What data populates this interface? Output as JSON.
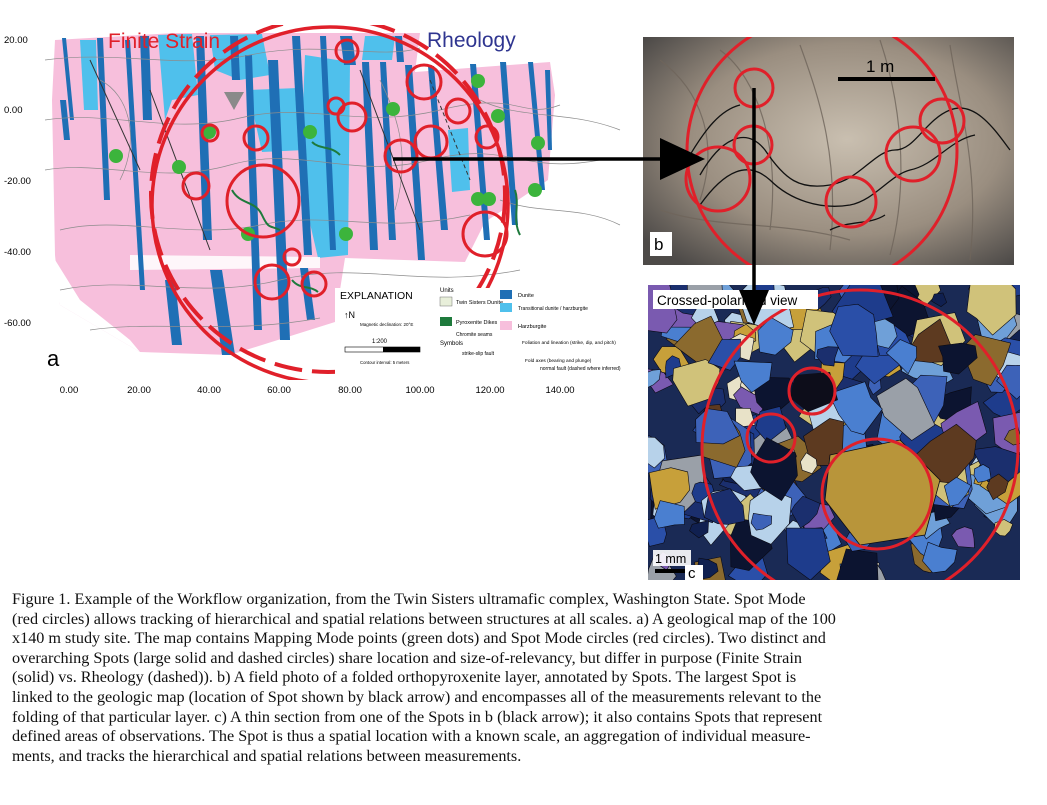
{
  "panel_a": {
    "label_finite": "Finite Strain",
    "label_rheology": "Rheology",
    "panel_letter": "a",
    "y_ticks": [
      "20.00",
      "0.00",
      "-20.00",
      "-40.00",
      "-60.00"
    ],
    "x_ticks": [
      "0.00",
      "20.00",
      "40.00",
      "60.00",
      "80.00",
      "100.00",
      "120.00",
      "140.00"
    ],
    "explanation": {
      "title": "EXPLANATION",
      "units_heading": "Units",
      "unit1": "Twin Sisters Dunite",
      "unit2": "Pyroxenite Dikes",
      "unit3": "Dunite",
      "unit4": "Transitional dunite / harzburgite",
      "unit5": "Harzburgite",
      "chromite": "Chromite seams",
      "symbols": "Symbols",
      "strike_slip": "strike-slip fault",
      "foliation": "Foliation and lineation (strike, dip, and pitch)",
      "fold_axes": "Fold axes (bearing and plunge)",
      "normal_fault": "normal fault (dashed where inferred)",
      "scale": "1:200",
      "declination": "Magnetic declination: 20°E",
      "contour": "Contour interval: 5 meters",
      "colors": {
        "dunite": "#1f6fb5",
        "transitional": "#4fc0ec",
        "harzburgite": "#f7bfdc",
        "pyroxenite": "#1e7a3c",
        "twin_sisters": "#e8efda"
      }
    }
  },
  "panel_b": {
    "scale_label": "1 m",
    "panel_letter": "b"
  },
  "panel_c": {
    "title": "Crossed-polarized view",
    "scale_label": "1 mm",
    "panel_letter": "c"
  },
  "caption": {
    "lines": [
      "Figure 1. Example of the Workflow organization, from the Twin Sisters ultramafic complex, Washington State.  Spot Mode",
      "(red circles) allows tracking of hierarchical and spatial relations between structures at all scales.  a) A geological map of the 100",
      "x140 m study site.  The map contains Mapping Mode points (green dots) and Spot Mode circles (red circles).  Two distinct and",
      "overarching Spots (large solid and dashed circles) share location and size-of-relevancy, but differ in purpose (Finite Strain",
      "(solid) vs. Rheology (dashed)).  b) A field photo of a folded orthopyroxenite layer, annotated by Spots. The largest Spot is",
      "linked to the geologic map (location of Spot shown by black arrow) and encompasses all of the measurements relevant to the",
      "folding of that particular layer. c) A thin section from one of the Spots in b (black arrow); it also contains Spots that represent",
      "defined areas of observations. The Spot is thus a spatial location with a known scale, an aggregation of individual measure-",
      "ments, and tracks the hierarchical and spatial relations between measurements."
    ]
  }
}
